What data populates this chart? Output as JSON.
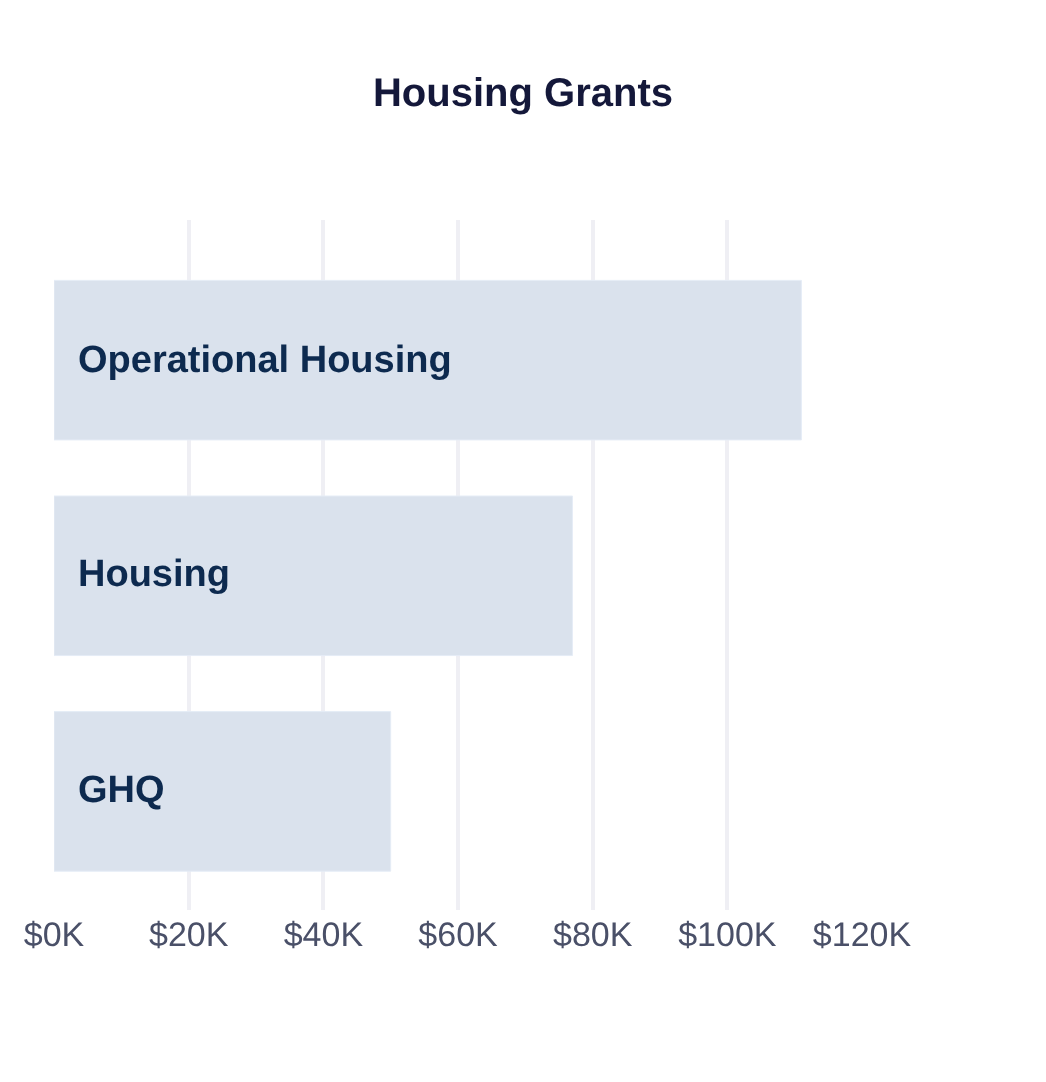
{
  "chart_data": {
    "type": "bar",
    "orientation": "horizontal",
    "title": "Housing Grants",
    "categories": [
      "Operational Housing",
      "Housing",
      "GHQ"
    ],
    "values": [
      111,
      77,
      50
    ],
    "color": "#dae2ed",
    "xlim": [
      0,
      120
    ],
    "xticks": [
      {
        "value": 0,
        "label": "$0K"
      },
      {
        "value": 20,
        "label": "$20K"
      },
      {
        "value": 40,
        "label": "$40K"
      },
      {
        "value": 60,
        "label": "$60K"
      },
      {
        "value": 80,
        "label": "$80K"
      },
      {
        "value": 100,
        "label": "$100K"
      },
      {
        "value": 120,
        "label": "$120K"
      }
    ],
    "grid": "x",
    "legend": false
  }
}
